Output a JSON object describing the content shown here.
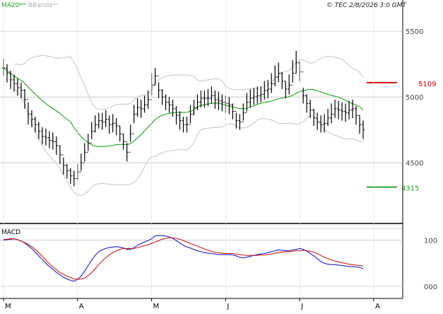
{
  "legend": {
    "ma_label": "MA20",
    "bb_label": "BBands",
    "ma_color": "#1fa01f",
    "bb_color": "#bbbbbb"
  },
  "copyright": "© TEC 2/8/2026 3:0 GMT",
  "macd_title": "MACD",
  "colors": {
    "price_bar": "#000000",
    "resistance": "#cc0000",
    "support": "#1fa01f",
    "macd": "#1f1fbf",
    "signal": "#cc1f1f",
    "grid": "#bbbbbb"
  },
  "chart_data": [
    {
      "type": "ohlc",
      "title": "",
      "y_ticks": [
        "5500",
        "5000",
        "4500"
      ],
      "ylim": [
        4060,
        5640
      ],
      "x_ticks": [
        "M",
        "A",
        "M",
        "J",
        "J",
        "A"
      ],
      "x_tick_positions": [
        0,
        21,
        42,
        63,
        84,
        105
      ],
      "grid": true,
      "resistance": {
        "value": 5109,
        "label": "5109"
      },
      "support": {
        "value": 4315,
        "label": "4315"
      },
      "close": [
        5220,
        5180,
        5130,
        5100,
        5070,
        5050,
        4980,
        4870,
        4830,
        4790,
        4740,
        4700,
        4690,
        4670,
        4660,
        4630,
        4560,
        4480,
        4440,
        4400,
        4380,
        4430,
        4500,
        4580,
        4650,
        4740,
        4790,
        4820,
        4810,
        4830,
        4790,
        4800,
        4780,
        4720,
        4660,
        4580,
        4720,
        4870,
        4920,
        4910,
        4940,
        4980,
        5090,
        5160,
        5050,
        5000,
        4960,
        4940,
        4910,
        4860,
        4820,
        4790,
        4790,
        4870,
        4920,
        4960,
        4990,
        4990,
        4990,
        5010,
        4980,
        4970,
        4960,
        4950,
        4940,
        4890,
        4820,
        4810,
        4880,
        4960,
        4990,
        5000,
        5010,
        5020,
        5050,
        5060,
        5100,
        5150,
        5180,
        5120,
        5060,
        5090,
        5180,
        5260,
        5190,
        5010,
        4950,
        4900,
        4840,
        4810,
        4790,
        4800,
        4840,
        4870,
        4910,
        4900,
        4890,
        4880,
        4900,
        4910,
        4860,
        4790,
        4750
      ],
      "high": [
        5290,
        5250,
        5200,
        5170,
        5140,
        5110,
        5060,
        4960,
        4900,
        4850,
        4810,
        4770,
        4760,
        4740,
        4730,
        4700,
        4630,
        4540,
        4490,
        4460,
        4440,
        4490,
        4570,
        4650,
        4720,
        4810,
        4860,
        4880,
        4880,
        4900,
        4860,
        4870,
        4840,
        4780,
        4720,
        4650,
        4790,
        4940,
        4990,
        4980,
        5010,
        5050,
        5180,
        5220,
        5110,
        5060,
        5020,
        5000,
        4980,
        4930,
        4890,
        4850,
        4850,
        4940,
        4980,
        5020,
        5050,
        5050,
        5060,
        5080,
        5050,
        5040,
        5020,
        5010,
        5000,
        4950,
        4880,
        4870,
        4950,
        5030,
        5060,
        5070,
        5080,
        5080,
        5120,
        5130,
        5180,
        5240,
        5260,
        5190,
        5120,
        5170,
        5280,
        5350,
        5270,
        5070,
        5020,
        4980,
        4910,
        4880,
        4860,
        4870,
        4910,
        4950,
        4980,
        4970,
        4960,
        4950,
        4970,
        4980,
        4930,
        4860,
        4820
      ],
      "low": [
        5160,
        5110,
        5060,
        5040,
        5010,
        4990,
        4910,
        4790,
        4770,
        4730,
        4680,
        4640,
        4630,
        4610,
        4600,
        4560,
        4490,
        4410,
        4380,
        4340,
        4320,
        4370,
        4440,
        4510,
        4590,
        4680,
        4730,
        4760,
        4750,
        4770,
        4720,
        4730,
        4710,
        4660,
        4600,
        4510,
        4660,
        4800,
        4850,
        4840,
        4880,
        4910,
        5010,
        5090,
        4990,
        4940,
        4900,
        4880,
        4850,
        4790,
        4750,
        4730,
        4730,
        4800,
        4860,
        4900,
        4920,
        4920,
        4930,
        4950,
        4910,
        4900,
        4890,
        4880,
        4870,
        4830,
        4760,
        4750,
        4820,
        4890,
        4920,
        4940,
        4950,
        4960,
        4980,
        4990,
        5030,
        5080,
        5110,
        5060,
        4990,
        5020,
        5110,
        5180,
        5120,
        4950,
        4880,
        4840,
        4780,
        4750,
        4730,
        4730,
        4780,
        4800,
        4840,
        4830,
        4820,
        4810,
        4830,
        4840,
        4790,
        4720,
        4680
      ]
    },
    {
      "type": "line",
      "title": "MACD",
      "y_ticks": [
        "100",
        "000"
      ],
      "ylim": [
        -20,
        130
      ],
      "series": [
        {
          "name": "",
          "values": [
            100,
            101,
            102,
            103,
            101,
            98,
            94,
            88,
            82,
            74,
            66,
            58,
            50,
            43,
            37,
            30,
            25,
            20,
            16,
            13,
            11,
            15,
            22,
            33,
            45,
            57,
            67,
            75,
            79,
            82,
            84,
            85,
            86,
            85,
            83,
            80,
            80,
            84,
            89,
            93,
            96,
            99,
            103,
            109,
            110,
            110,
            109,
            107,
            104,
            99,
            94,
            89,
            85,
            83,
            80,
            77,
            75,
            73,
            72,
            71,
            70,
            69,
            69,
            69,
            69,
            68,
            66,
            63,
            62,
            63,
            65,
            67,
            69,
            70,
            71,
            73,
            75,
            77,
            79,
            78,
            77,
            77,
            79,
            80,
            82,
            80,
            76,
            71,
            66,
            60,
            54,
            50,
            48,
            47,
            47,
            46,
            45,
            44,
            43,
            43,
            42,
            41,
            38
          ]
        },
        {
          "name": "",
          "values": [
            101,
            102,
            103,
            103,
            101,
            98,
            95,
            91,
            86,
            80,
            73,
            65,
            57,
            49,
            42,
            36,
            30,
            26,
            22,
            19,
            16,
            15,
            16,
            18,
            23,
            30,
            38,
            47,
            55,
            62,
            68,
            73,
            77,
            80,
            82,
            82,
            82,
            82,
            84,
            86,
            88,
            90,
            93,
            96,
            99,
            102,
            104,
            105,
            105,
            104,
            102,
            99,
            96,
            93,
            90,
            87,
            84,
            81,
            78,
            76,
            74,
            73,
            72,
            71,
            71,
            71,
            70,
            69,
            68,
            67,
            67,
            67,
            67,
            68,
            68,
            69,
            70,
            72,
            73,
            74,
            75,
            75,
            76,
            77,
            77,
            78,
            77,
            76,
            74,
            71,
            67,
            63,
            60,
            57,
            55,
            53,
            51,
            50,
            48,
            47,
            46,
            45,
            44
          ]
        }
      ]
    }
  ]
}
